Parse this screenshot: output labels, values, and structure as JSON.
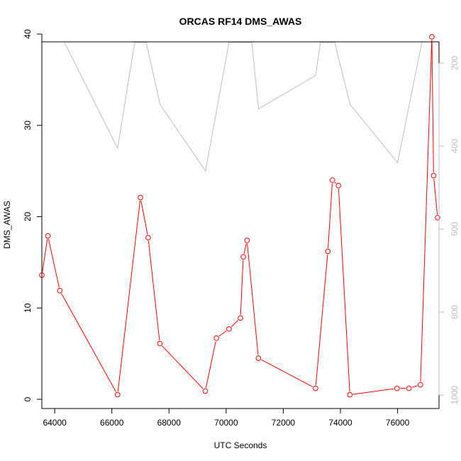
{
  "chart_data": {
    "type": "line",
    "title": "ORCAS RF14 DMS_AWAS",
    "xlabel": "UTC Seconds",
    "ylabel": "DMS_AWAS",
    "xlim": [
      63600,
      77400
    ],
    "ylim": [
      0,
      40
    ],
    "y2lim": [
      1000,
      200
    ],
    "x_ticks": [
      "64000",
      "66000",
      "68000",
      "70000",
      "72000",
      "74000",
      "76000"
    ],
    "y_ticks": [
      "0",
      "10",
      "20",
      "30",
      "40"
    ],
    "y2_ticks": [
      "200",
      "400",
      "600",
      "800",
      "1000"
    ],
    "series": [
      {
        "color": "#ff0000",
        "marker": "open-circle",
        "axis": "left",
        "x": [
          63550,
          63760,
          64180,
          66200,
          67000,
          67270,
          67680,
          69270,
          69660,
          70100,
          70500,
          70600,
          70730,
          71130,
          73130,
          73560,
          73720,
          73930,
          74330,
          75980,
          76400,
          76800,
          77200,
          77260,
          77400
        ],
        "y": [
          13.6,
          17.9,
          11.9,
          0.5,
          22.1,
          17.7,
          6.1,
          0.9,
          6.7,
          7.7,
          8.9,
          15.6,
          17.4,
          4.5,
          1.2,
          16.2,
          24.0,
          23.4,
          0.5,
          1.2,
          1.2,
          1.6,
          39.7,
          24.5,
          19.9
        ]
      },
      {
        "color": "#bebebe",
        "axis": "right",
        "x": [
          64340,
          66200,
          66800,
          67200,
          67690,
          69280,
          70100,
          70900,
          71130,
          73130,
          73300,
          73800,
          74340,
          76000,
          76850
        ],
        "y": [
          150,
          405,
          150,
          150,
          300,
          460,
          150,
          150,
          310,
          230,
          150,
          150,
          300,
          440,
          150
        ]
      }
    ]
  }
}
